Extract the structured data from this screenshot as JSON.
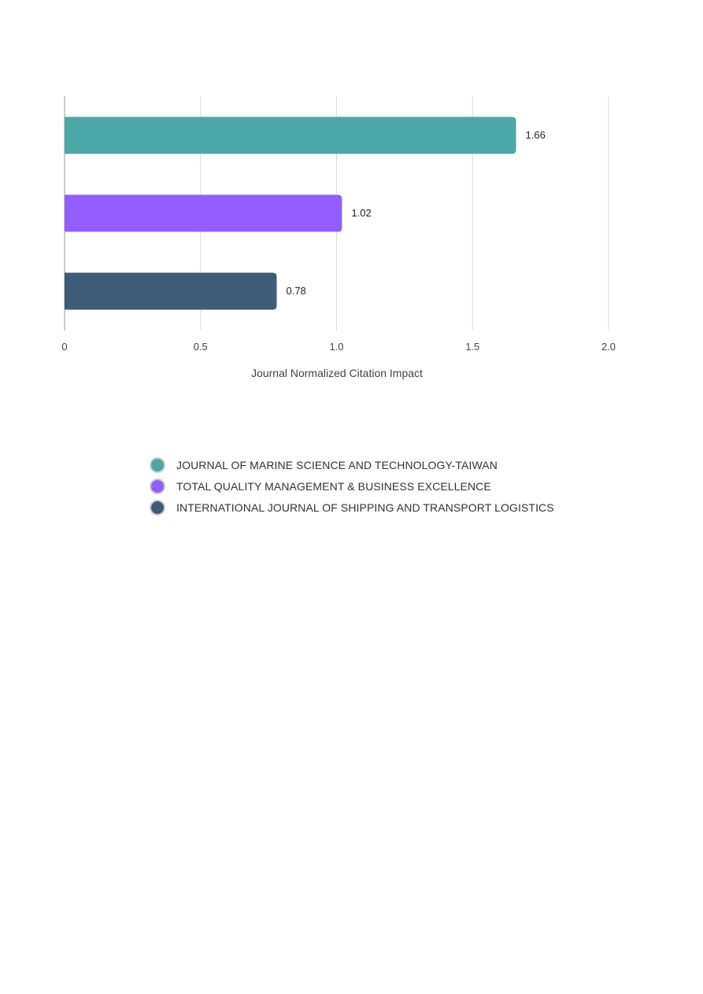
{
  "chart_data": {
    "type": "bar",
    "orientation": "horizontal",
    "categories": [
      "JOURNAL OF MARINE SCIENCE AND TECHNOLOGY-TAIWAN",
      "TOTAL QUALITY MANAGEMENT & BUSINESS EXCELLENCE",
      "INTERNATIONAL JOURNAL OF SHIPPING AND TRANSPORT LOGISTICS"
    ],
    "values": [
      1.66,
      1.02,
      0.78
    ],
    "value_labels": [
      "1.66",
      "1.02",
      "0.78"
    ],
    "colors": [
      "#4da7a6",
      "#935efd",
      "#3e5c77"
    ],
    "xlabel": "Journal Normalized Citation Impact",
    "xlim": [
      0,
      2.0
    ],
    "xticks": [
      0,
      0.5,
      1.0,
      1.5,
      2.0
    ],
    "xtick_labels": [
      "0",
      "0.5",
      "1.0",
      "1.5",
      "2.0"
    ],
    "grid": "vertical",
    "legend_position": "bottom"
  }
}
